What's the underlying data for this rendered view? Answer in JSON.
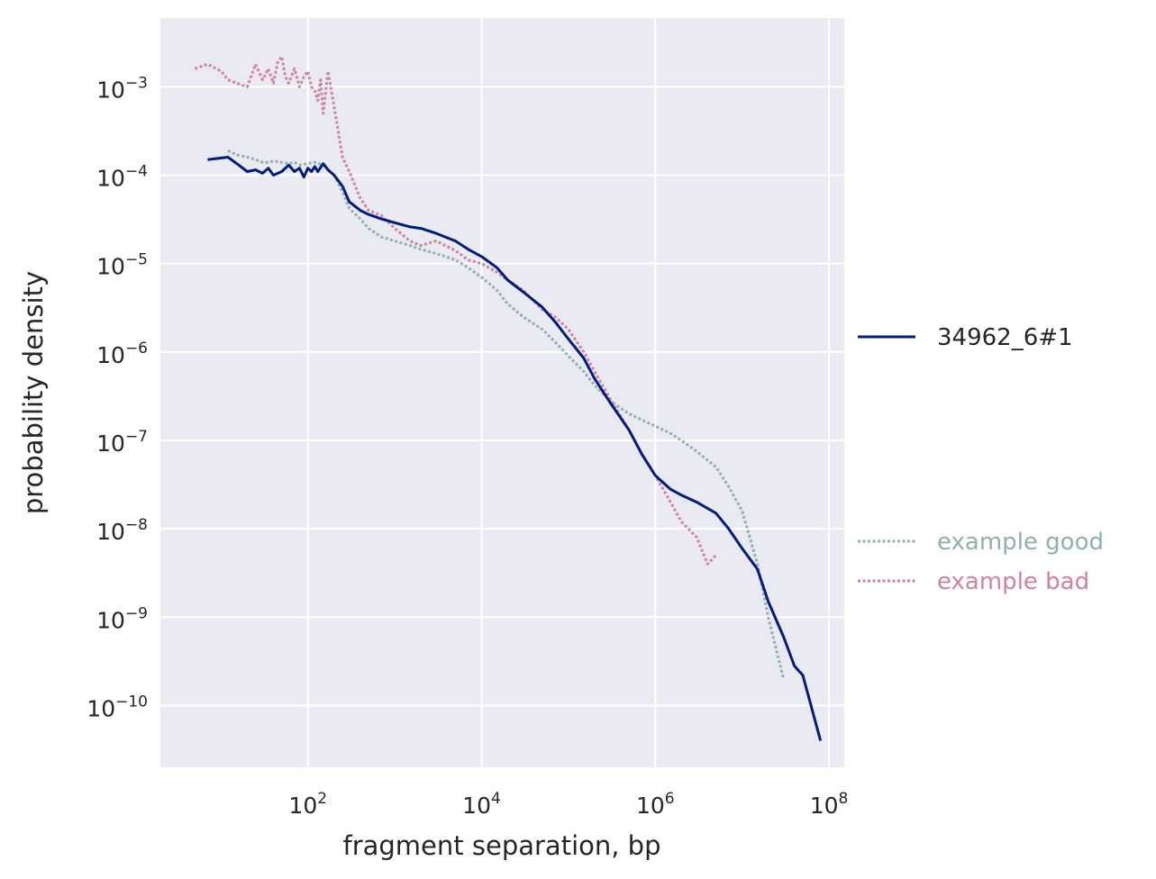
{
  "chart_data": {
    "type": "line",
    "xlabel": "fragment separation, bp",
    "ylabel": "probability density",
    "xscale": "log",
    "yscale": "log",
    "xlim": [
      2,
      150000000
    ],
    "ylim": [
      2e-11,
      0.006
    ],
    "grid": true,
    "x_ticks": [
      {
        "value": 100,
        "base": "10",
        "exp": "2"
      },
      {
        "value": 10000,
        "base": "10",
        "exp": "4"
      },
      {
        "value": 1000000,
        "base": "10",
        "exp": "6"
      },
      {
        "value": 100000000,
        "base": "10",
        "exp": "8"
      }
    ],
    "y_ticks": [
      {
        "value": 0.001,
        "base": "10",
        "exp": "−3"
      },
      {
        "value": 0.0001,
        "base": "10",
        "exp": "−4"
      },
      {
        "value": 1e-05,
        "base": "10",
        "exp": "−5"
      },
      {
        "value": 1e-06,
        "base": "10",
        "exp": "−6"
      },
      {
        "value": 1e-07,
        "base": "10",
        "exp": "−7"
      },
      {
        "value": 1e-08,
        "base": "10",
        "exp": "−8"
      },
      {
        "value": 1e-09,
        "base": "10",
        "exp": "−9"
      },
      {
        "value": 1e-10,
        "base": "10",
        "exp": "−10"
      }
    ],
    "legend_main": {
      "placement": "right",
      "entries": [
        {
          "series": 0
        }
      ]
    },
    "legend_examples": {
      "placement": "lower-right",
      "entries": [
        {
          "series": 1
        },
        {
          "series": 2
        }
      ]
    },
    "series": [
      {
        "name": "34962_6#1",
        "color": "#001c7f",
        "style": "solid",
        "x": [
          7,
          12,
          16,
          20,
          25,
          30,
          35,
          40,
          50,
          60,
          70,
          80,
          90,
          100,
          110,
          120,
          130,
          150,
          170,
          200,
          250,
          300,
          400,
          500,
          700,
          1000,
          1500,
          2000,
          3000,
          5000,
          7000,
          10000,
          15000,
          20000,
          30000,
          50000,
          70000,
          100000,
          150000,
          200000,
          300000,
          500000,
          700000,
          1000000,
          1500000,
          2000000,
          3000000,
          5000000,
          7000000,
          10000000,
          15000000,
          20000000,
          30000000,
          40000000,
          50000000,
          80000000
        ],
        "y": [
          0.00015,
          0.00016,
          0.00013,
          0.00011,
          0.000115,
          0.000105,
          0.00012,
          0.0001,
          0.00011,
          0.00013,
          0.00011,
          0.00012,
          9.5e-05,
          0.00012,
          0.00011,
          0.000125,
          0.00011,
          0.000135,
          0.000115,
          0.0001,
          7.5e-05,
          5e-05,
          4e-05,
          3.6e-05,
          3.2e-05,
          2.9e-05,
          2.6e-05,
          2.5e-05,
          2.2e-05,
          1.8e-05,
          1.45e-05,
          1.2e-05,
          9e-06,
          6.5e-06,
          4.8e-06,
          3.2e-06,
          2.2e-06,
          1.4e-06,
          8.5e-07,
          5e-07,
          2.7e-07,
          1.3e-07,
          7e-08,
          4e-08,
          2.8e-08,
          2.4e-08,
          2e-08,
          1.5e-08,
          1e-08,
          6e-09,
          3.5e-09,
          1.5e-09,
          6e-10,
          2.8e-10,
          2.2e-10,
          4e-11
        ]
      },
      {
        "name": "example good",
        "color": "#8fb1ab",
        "style": "dotted",
        "x": [
          12,
          15,
          20,
          25,
          30,
          35,
          40,
          50,
          60,
          70,
          80,
          100,
          120,
          150,
          200,
          250,
          300,
          400,
          500,
          700,
          1000,
          1500,
          2000,
          3000,
          5000,
          7000,
          10000,
          15000,
          20000,
          30000,
          50000,
          70000,
          100000,
          150000,
          200000,
          300000,
          500000,
          700000,
          1000000,
          1500000,
          2000000,
          3000000,
          5000000,
          7000000,
          10000000,
          15000000,
          20000000,
          30000000
        ],
        "y": [
          0.00019,
          0.00017,
          0.00016,
          0.00015,
          0.00014,
          0.00014,
          0.000145,
          0.00014,
          0.000135,
          0.00014,
          0.00013,
          0.000135,
          0.00014,
          0.00013,
          0.0001,
          6.5e-05,
          4.2e-05,
          3.2e-05,
          2.5e-05,
          2e-05,
          1.8e-05,
          1.6e-05,
          1.45e-05,
          1.3e-05,
          1.1e-05,
          9e-06,
          7e-06,
          5e-06,
          3.5e-06,
          2.5e-06,
          1.8e-06,
          1.3e-06,
          9e-07,
          6e-07,
          4.2e-07,
          2.8e-07,
          2e-07,
          1.7e-07,
          1.45e-07,
          1.2e-07,
          1e-07,
          7.5e-08,
          5e-08,
          3e-08,
          1.6e-08,
          4e-09,
          1e-09,
          2e-10
        ]
      },
      {
        "name": "example bad",
        "color": "#d0839e",
        "style": "dotted",
        "x": [
          5,
          7,
          10,
          12,
          15,
          20,
          25,
          30,
          35,
          40,
          45,
          50,
          55,
          60,
          70,
          80,
          90,
          100,
          110,
          120,
          130,
          140,
          150,
          170,
          200,
          250,
          300,
          400,
          500,
          700,
          1000,
          1500,
          2000,
          3000,
          5000,
          7000,
          10000,
          15000,
          20000,
          30000,
          50000,
          70000,
          100000,
          150000,
          200000,
          300000,
          500000,
          700000,
          1000000,
          1500000,
          2000000,
          3000000,
          4000000,
          5000000
        ],
        "y": [
          0.0016,
          0.0018,
          0.0015,
          0.0012,
          0.0011,
          0.001,
          0.0018,
          0.0012,
          0.0016,
          0.0011,
          0.0019,
          0.0022,
          0.0013,
          0.0011,
          0.0016,
          0.001,
          0.0013,
          0.0015,
          0.001,
          0.0009,
          0.0007,
          0.0012,
          0.0005,
          0.0015,
          0.0006,
          0.00016,
          0.00011,
          5.5e-05,
          4e-05,
          3.5e-05,
          2.5e-05,
          1.8e-05,
          1.6e-05,
          1.8e-05,
          1.4e-05,
          1.1e-05,
          1e-05,
          8e-06,
          6.5e-06,
          5e-06,
          3e-06,
          2.5e-06,
          1.8e-06,
          1e-06,
          6e-07,
          3e-07,
          1.3e-07,
          7e-08,
          4e-08,
          2e-08,
          1.2e-08,
          8e-09,
          4e-09,
          5e-09
        ]
      }
    ]
  }
}
